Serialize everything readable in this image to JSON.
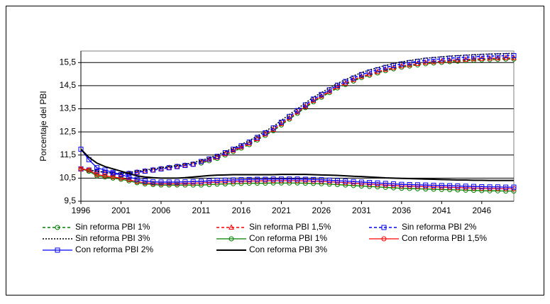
{
  "chart_data": {
    "type": "line",
    "y_label": "Porcentaje del PBI",
    "x": [
      1996,
      1997,
      1998,
      1999,
      2000,
      2001,
      2002,
      2003,
      2004,
      2005,
      2006,
      2007,
      2008,
      2009,
      2010,
      2011,
      2012,
      2013,
      2014,
      2015,
      2016,
      2017,
      2018,
      2019,
      2020,
      2021,
      2022,
      2023,
      2024,
      2025,
      2026,
      2027,
      2028,
      2029,
      2030,
      2031,
      2032,
      2033,
      2034,
      2035,
      2036,
      2037,
      2038,
      2039,
      2040,
      2041,
      2042,
      2043,
      2044,
      2045,
      2046,
      2047,
      2048,
      2049,
      2050
    ],
    "xlim": [
      1996,
      2050
    ],
    "xticks": [
      1996,
      2001,
      2006,
      2011,
      2016,
      2021,
      2026,
      2031,
      2036,
      2041,
      2046
    ],
    "ylim": [
      9.5,
      16.0
    ],
    "yticks": [
      {
        "value": 9.5,
        "label": "9,5"
      },
      {
        "value": 10.5,
        "label": "10,5"
      },
      {
        "value": 11.5,
        "label": "11,5"
      },
      {
        "value": 12.5,
        "label": "12,5"
      },
      {
        "value": 13.5,
        "label": "13,5"
      },
      {
        "value": 14.5,
        "label": "14,5"
      },
      {
        "value": 15.5,
        "label": "15,5"
      }
    ],
    "grid": true,
    "series": [
      {
        "name": "Sin reforma PBI 1%",
        "color": "#008000",
        "line_style": "dashed",
        "marker": "circle",
        "values": [
          10.9,
          10.85,
          10.8,
          10.75,
          10.7,
          10.65,
          10.7,
          10.75,
          10.8,
          10.85,
          10.9,
          10.95,
          11.0,
          11.05,
          11.1,
          11.15,
          11.25,
          11.35,
          11.5,
          11.65,
          11.8,
          11.95,
          12.15,
          12.35,
          12.55,
          12.8,
          13.05,
          13.3,
          13.55,
          13.8,
          14.0,
          14.2,
          14.4,
          14.55,
          14.7,
          14.85,
          14.95,
          15.05,
          15.15,
          15.23,
          15.3,
          15.35,
          15.4,
          15.45,
          15.48,
          15.51,
          15.54,
          15.56,
          15.58,
          15.6,
          15.62,
          15.63,
          15.64,
          15.65,
          15.65
        ]
      },
      {
        "name": "Sin reforma PBI 1,5%",
        "color": "#ff0000",
        "line_style": "dashed",
        "marker": "triangle",
        "values": [
          10.9,
          10.85,
          10.8,
          10.75,
          10.7,
          10.65,
          10.7,
          10.75,
          10.8,
          10.85,
          10.9,
          10.95,
          11.0,
          11.05,
          11.1,
          11.2,
          11.3,
          11.4,
          11.55,
          11.7,
          11.85,
          12.0,
          12.2,
          12.4,
          12.6,
          12.85,
          13.1,
          13.35,
          13.6,
          13.85,
          14.05,
          14.25,
          14.45,
          14.6,
          14.75,
          14.9,
          15.0,
          15.1,
          15.2,
          15.28,
          15.35,
          15.4,
          15.45,
          15.5,
          15.53,
          15.56,
          15.59,
          15.61,
          15.63,
          15.65,
          15.67,
          15.68,
          15.69,
          15.7,
          15.7
        ]
      },
      {
        "name": "Sin reforma PBI 2%",
        "color": "#0000ff",
        "line_style": "dashed",
        "marker": "square",
        "values": [
          10.9,
          10.85,
          10.8,
          10.75,
          10.7,
          10.65,
          10.7,
          10.75,
          10.8,
          10.85,
          10.9,
          10.95,
          11.0,
          11.05,
          11.1,
          11.22,
          11.33,
          11.44,
          11.6,
          11.75,
          11.9,
          12.06,
          12.26,
          12.46,
          12.67,
          12.92,
          13.17,
          13.42,
          13.67,
          13.92,
          14.12,
          14.32,
          14.52,
          14.68,
          14.83,
          14.98,
          15.09,
          15.19,
          15.29,
          15.37,
          15.44,
          15.5,
          15.55,
          15.6,
          15.63,
          15.66,
          15.69,
          15.71,
          15.73,
          15.75,
          15.77,
          15.78,
          15.79,
          15.8,
          15.8
        ]
      },
      {
        "name": "Sin reforma PBI 3%",
        "color": "#000000",
        "line_style": "dotted",
        "marker": "none",
        "values": [
          10.9,
          10.85,
          10.8,
          10.75,
          10.72,
          10.7,
          10.75,
          10.8,
          10.85,
          10.9,
          10.95,
          11.0,
          11.05,
          11.1,
          11.17,
          11.27,
          11.38,
          11.5,
          11.65,
          11.8,
          11.96,
          12.12,
          12.32,
          12.53,
          12.74,
          13.0,
          13.25,
          13.5,
          13.75,
          14.0,
          14.2,
          14.4,
          14.6,
          14.76,
          14.92,
          15.07,
          15.18,
          15.28,
          15.38,
          15.46,
          15.53,
          15.59,
          15.64,
          15.69,
          15.72,
          15.75,
          15.78,
          15.8,
          15.82,
          15.84,
          15.86,
          15.87,
          15.88,
          15.89,
          15.9
        ]
      },
      {
        "name": "Con reforma PBI 1%",
        "color": "#008000",
        "line_style": "solid",
        "marker": "circle",
        "values": [
          10.9,
          10.8,
          10.6,
          10.55,
          10.5,
          10.45,
          10.38,
          10.3,
          10.25,
          10.22,
          10.2,
          10.2,
          10.2,
          10.2,
          10.2,
          10.2,
          10.22,
          10.24,
          10.25,
          10.26,
          10.27,
          10.28,
          10.28,
          10.28,
          10.29,
          10.29,
          10.29,
          10.29,
          10.28,
          10.27,
          10.26,
          10.24,
          10.22,
          10.2,
          10.18,
          10.16,
          10.14,
          10.12,
          10.1,
          10.08,
          10.06,
          10.05,
          10.04,
          10.03,
          10.02,
          10.01,
          10.0,
          9.99,
          9.98,
          9.97,
          9.96,
          9.95,
          9.95,
          9.94,
          9.94
        ]
      },
      {
        "name": "Con reforma PBI 1,5%",
        "color": "#ff0000",
        "line_style": "solid",
        "marker": "circle",
        "values": [
          10.9,
          10.85,
          10.65,
          10.6,
          10.55,
          10.5,
          10.43,
          10.35,
          10.3,
          10.27,
          10.26,
          10.26,
          10.26,
          10.27,
          10.28,
          10.29,
          10.31,
          10.33,
          10.34,
          10.35,
          10.36,
          10.37,
          10.38,
          10.38,
          10.39,
          10.39,
          10.39,
          10.39,
          10.38,
          10.37,
          10.36,
          10.34,
          10.32,
          10.3,
          10.28,
          10.26,
          10.24,
          10.22,
          10.2,
          10.18,
          10.16,
          10.15,
          10.14,
          10.13,
          10.12,
          10.11,
          10.1,
          10.09,
          10.08,
          10.07,
          10.06,
          10.05,
          10.05,
          10.04,
          10.04
        ]
      },
      {
        "name": "Con reforma PBI 2%",
        "color": "#0000ff",
        "line_style": "solid",
        "marker": "square",
        "values": [
          11.75,
          11.3,
          10.95,
          10.85,
          10.75,
          10.65,
          10.55,
          10.45,
          10.38,
          10.34,
          10.33,
          10.33,
          10.33,
          10.34,
          10.35,
          10.36,
          10.38,
          10.4,
          10.41,
          10.42,
          10.43,
          10.44,
          10.45,
          10.45,
          10.46,
          10.46,
          10.46,
          10.46,
          10.45,
          10.44,
          10.43,
          10.41,
          10.39,
          10.37,
          10.35,
          10.33,
          10.31,
          10.29,
          10.27,
          10.25,
          10.23,
          10.22,
          10.21,
          10.2,
          10.19,
          10.18,
          10.17,
          10.16,
          10.15,
          10.14,
          10.13,
          10.12,
          10.12,
          10.11,
          10.11
        ]
      },
      {
        "name": "Con reforma PBI  3%",
        "color": "#000000",
        "line_style": "solid",
        "marker": "none",
        "values": [
          11.75,
          11.4,
          11.15,
          11.0,
          10.9,
          10.8,
          10.7,
          10.6,
          10.55,
          10.52,
          10.5,
          10.5,
          10.5,
          10.52,
          10.55,
          10.58,
          10.61,
          10.63,
          10.64,
          10.65,
          10.65,
          10.65,
          10.65,
          10.65,
          10.65,
          10.66,
          10.66,
          10.66,
          10.66,
          10.65,
          10.64,
          10.63,
          10.62,
          10.6,
          10.58,
          10.57,
          10.55,
          10.53,
          10.51,
          10.5,
          10.49,
          10.48,
          10.47,
          10.46,
          10.45,
          10.44,
          10.43,
          10.42,
          10.42,
          10.41,
          10.41,
          10.4,
          10.4,
          10.4,
          10.4
        ]
      }
    ]
  }
}
